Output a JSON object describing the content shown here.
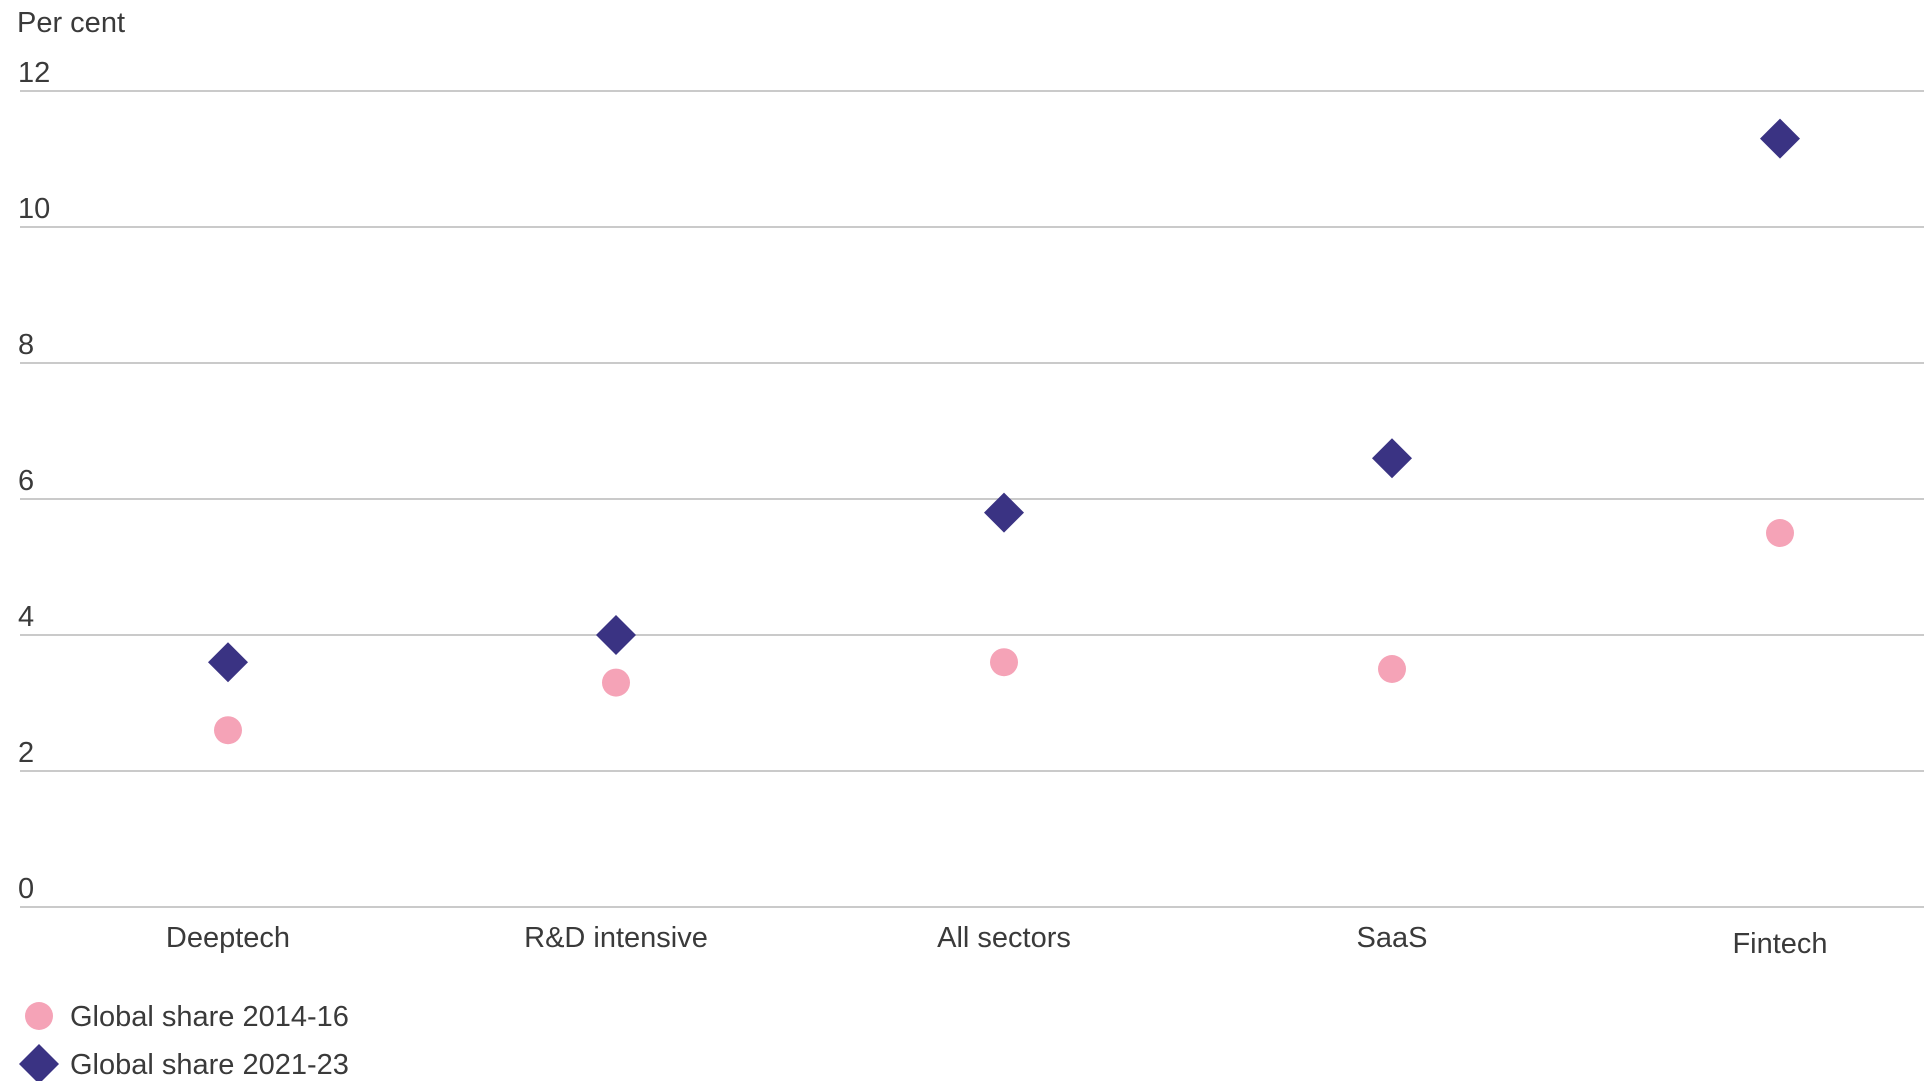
{
  "chart_data": {
    "type": "scatter",
    "title": "",
    "ylabel": "Per cent",
    "xlabel": "",
    "ylim": [
      0,
      12
    ],
    "yticks": [
      0,
      2,
      4,
      6,
      8,
      10,
      12
    ],
    "yticks_labels": [
      "0",
      "2",
      "4",
      "6",
      "8",
      "10",
      "12"
    ],
    "grid": true,
    "legend_position": "bottom-left",
    "categories": [
      "Deeptech",
      "R&D intensive",
      "All sectors",
      "SaaS",
      "Fintech"
    ],
    "series": [
      {
        "name": "Global share 2014-16",
        "marker": "circle",
        "color": "#f5a3b7",
        "values": [
          2.6,
          3.3,
          3.6,
          3.5,
          5.5
        ]
      },
      {
        "name": "Global share 2021-23",
        "marker": "diamond",
        "color": "#3a3383",
        "values": [
          3.6,
          4.0,
          5.8,
          6.6,
          11.3
        ]
      }
    ]
  }
}
